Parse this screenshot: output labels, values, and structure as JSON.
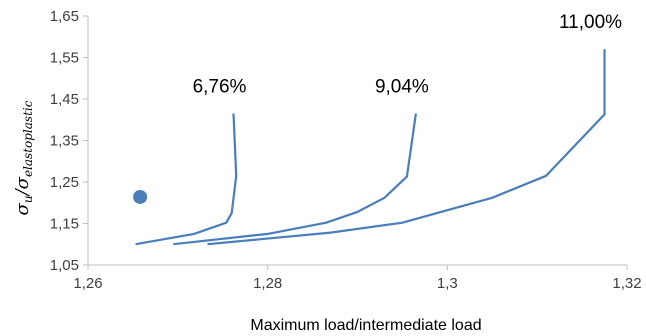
{
  "chart_data": {
    "type": "line",
    "xlabel": "Maximum load/intermediate load",
    "ylabel": {
      "sigma": "σ",
      "num_sub": "u",
      "slash": "/",
      "den_sub": "elastoplastic"
    },
    "xlim": [
      1.26,
      1.32
    ],
    "ylim": [
      1.05,
      1.65
    ],
    "x_ticks": [
      1.26,
      1.28,
      1.3,
      1.32
    ],
    "x_tick_labels": [
      "1,26",
      "1,28",
      "1,3",
      "1,32"
    ],
    "y_ticks": [
      1.05,
      1.15,
      1.25,
      1.35,
      1.45,
      1.55,
      1.65
    ],
    "y_tick_labels": [
      "1,05",
      "1,15",
      "1,25",
      "1,35",
      "1,45",
      "1,55",
      "1,65"
    ],
    "grid": false,
    "line_color": "#4a7ebb",
    "series": [
      {
        "label": "6,76%",
        "points": [
          [
            1.2653,
            1.1
          ],
          [
            1.2718,
            1.125
          ],
          [
            1.2754,
            1.152
          ],
          [
            1.276,
            1.175
          ],
          [
            1.2765,
            1.265
          ],
          [
            1.2762,
            1.415
          ]
        ]
      },
      {
        "label": "9,04%",
        "points": [
          [
            1.2695,
            1.1
          ],
          [
            1.28,
            1.125
          ],
          [
            1.2865,
            1.152
          ],
          [
            1.29,
            1.178
          ],
          [
            1.293,
            1.212
          ],
          [
            1.2955,
            1.263
          ],
          [
            1.2965,
            1.415
          ]
        ]
      },
      {
        "label": "11,00%",
        "points": [
          [
            1.2733,
            1.1
          ],
          [
            1.287,
            1.128
          ],
          [
            1.295,
            1.152
          ],
          [
            1.3,
            1.182
          ],
          [
            1.305,
            1.212
          ],
          [
            1.311,
            1.265
          ],
          [
            1.3175,
            1.413
          ],
          [
            1.3175,
            1.57
          ]
        ]
      }
    ],
    "marker": {
      "x": 1.2658,
      "y": 1.214
    }
  }
}
